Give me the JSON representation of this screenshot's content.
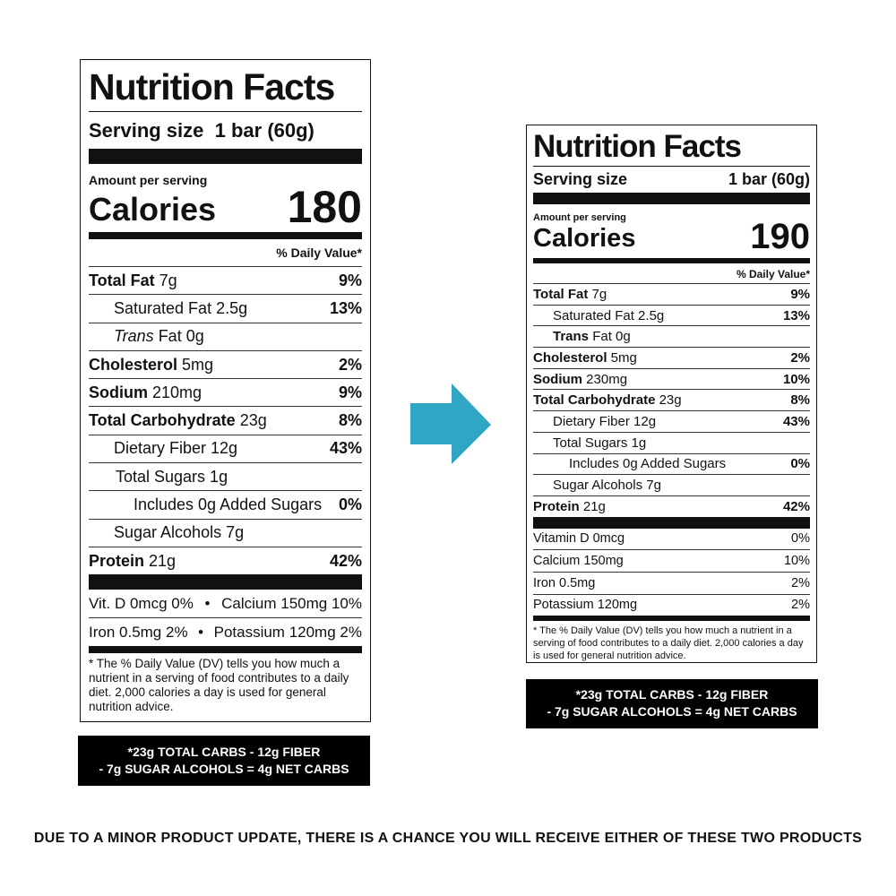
{
  "left": {
    "title": "Nutrition Facts",
    "serving_label": "Serving size",
    "serving_value": "1 bar (60g)",
    "amount_per_serving": "Amount per serving",
    "calories_label": "Calories",
    "calories_value": "180",
    "dv_header": "% Daily Value*",
    "rows": [
      {
        "name": "Total Fat",
        "amount": " 7g",
        "dv": "9%"
      },
      {
        "name": "Saturated Fat 2.5g",
        "dv": "13%"
      },
      {
        "name_italic": "Trans",
        "name": " Fat 0g",
        "dv": ""
      },
      {
        "name": "Cholesterol",
        "amount": " 5mg",
        "dv": "2%"
      },
      {
        "name": "Sodium",
        "amount": " 210mg",
        "dv": "9%"
      },
      {
        "name": "Total Carbohydrate",
        "amount": " 23g",
        "dv": "8%"
      },
      {
        "name": "Dietary Fiber 12g",
        "dv": "43%"
      },
      {
        "name": "Total Sugars 1g",
        "dv": ""
      },
      {
        "name": "Includes 0g Added Sugars",
        "dv": "0%"
      },
      {
        "name": "Sugar Alcohols 7g",
        "dv": ""
      },
      {
        "name": "Protein",
        "amount": " 21g",
        "dv": "42%"
      }
    ],
    "vitamins": [
      {
        "left": "Vit. D 0mcg 0%",
        "sep": "•",
        "right": "Calcium 150mg 10%"
      },
      {
        "left": "Iron 0.5mg 2%",
        "sep": "•",
        "right": "Potassium 120mg 2%"
      }
    ],
    "footnote": "* The % Daily Value (DV) tells you how much a nutrient in a serving of food contributes to a daily diet. 2,000 calories a day is used for general nutrition advice.",
    "carbs_line1": "*23g TOTAL CARBS - 12g FIBER",
    "carbs_line2": "- 7g SUGAR ALCOHOLS = 4g NET CARBS"
  },
  "right": {
    "title": "Nutrition Facts",
    "serving_label": "Serving size",
    "serving_value": "1 bar (60g)",
    "amount_per_serving": "Amount per serving",
    "calories_label": "Calories",
    "calories_value": "190",
    "dv_header": "% Daily Value*",
    "rows": [
      {
        "name": "Total Fat",
        "amount": " 7g",
        "dv": "9%"
      },
      {
        "name": "Saturated Fat 2.5g",
        "dv": "13%"
      },
      {
        "name_bold": "Trans",
        "name": " Fat 0g",
        "dv": ""
      },
      {
        "name": "Cholesterol",
        "amount": " 5mg",
        "dv": "2%"
      },
      {
        "name": "Sodium",
        "amount": " 230mg",
        "dv": "10%"
      },
      {
        "name": "Total Carbohydrate",
        "amount": " 23g",
        "dv": "8%"
      },
      {
        "name": "Dietary Fiber 12g",
        "dv": "43%"
      },
      {
        "name": "Total Sugars 1g",
        "dv": ""
      },
      {
        "name": "Includes 0g Added Sugars",
        "dv": "0%"
      },
      {
        "name": "Sugar Alcohols 7g",
        "dv": ""
      },
      {
        "name": "Protein",
        "amount": " 21g",
        "dv": "42%"
      }
    ],
    "vitamins": [
      {
        "name": "Vitamin D 0mcg",
        "dv": "0%"
      },
      {
        "name": "Calcium 150mg",
        "dv": "10%"
      },
      {
        "name": "Iron 0.5mg",
        "dv": "2%"
      },
      {
        "name": "Potassium 120mg",
        "dv": "2%"
      }
    ],
    "footnote": "* The % Daily Value (DV) tells you how much a nutrient in a serving of food contributes to a daily diet. 2,000 calories a day is used for general nutrition advice.",
    "carbs_line1": "*23g TOTAL CARBS - 12g FIBER",
    "carbs_line2": "- 7g SUGAR ALCOHOLS = 4g NET CARBS"
  },
  "arrow_color": "#2fa6c3",
  "notice": "DUE TO A MINOR PRODUCT UPDATE, THERE IS A CHANCE YOU WILL RECEIVE EITHER OF THESE TWO PRODUCTS"
}
